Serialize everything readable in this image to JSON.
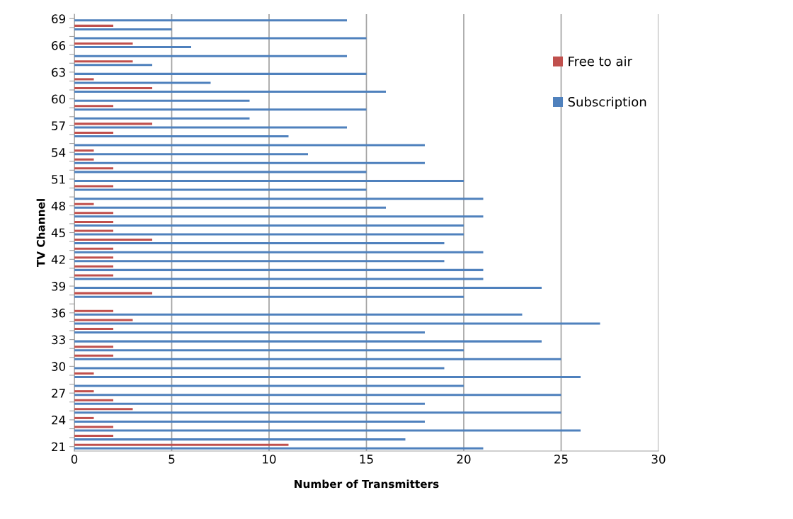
{
  "chart_data": {
    "type": "bar",
    "orientation": "horizontal",
    "xlabel": "Number of Transmitters",
    "ylabel": "TV Channel",
    "categories": [
      "69",
      null,
      null,
      "66",
      null,
      null,
      "63",
      null,
      null,
      "60",
      null,
      null,
      "57",
      null,
      null,
      "54",
      null,
      null,
      "51",
      null,
      null,
      "48",
      null,
      null,
      "45",
      null,
      null,
      "42",
      null,
      null,
      "39",
      null,
      null,
      "36",
      null,
      null,
      "33",
      null,
      null,
      "30",
      null,
      null,
      "27",
      null,
      null,
      "24",
      null,
      null,
      "21"
    ],
    "series": [
      {
        "name": "Free to air",
        "color": "#c0504d",
        "values": [
          null,
          2,
          null,
          3,
          null,
          3,
          null,
          1,
          4,
          null,
          2,
          null,
          4,
          2,
          null,
          1,
          1,
          2,
          null,
          2,
          null,
          1,
          2,
          2,
          2,
          4,
          2,
          2,
          2,
          2,
          null,
          4,
          null,
          2,
          3,
          2,
          null,
          2,
          2,
          null,
          1,
          null,
          1,
          2,
          3,
          1,
          2,
          2,
          11
        ]
      },
      {
        "name": "Subscription",
        "color": "#4f81bd",
        "values": [
          14,
          5,
          15,
          6,
          14,
          4,
          15,
          7,
          16,
          9,
          15,
          9,
          14,
          11,
          18,
          12,
          18,
          15,
          20,
          15,
          21,
          16,
          21,
          20,
          20,
          19,
          21,
          19,
          21,
          21,
          24,
          20,
          null,
          23,
          27,
          18,
          24,
          20,
          25,
          19,
          26,
          20,
          25,
          18,
          25,
          18,
          26,
          17,
          21
        ]
      }
    ],
    "xlim": [
      0,
      30
    ],
    "xticks": [
      0,
      5,
      10,
      15,
      20,
      25,
      30
    ],
    "grid": "x",
    "legend": "top right"
  }
}
